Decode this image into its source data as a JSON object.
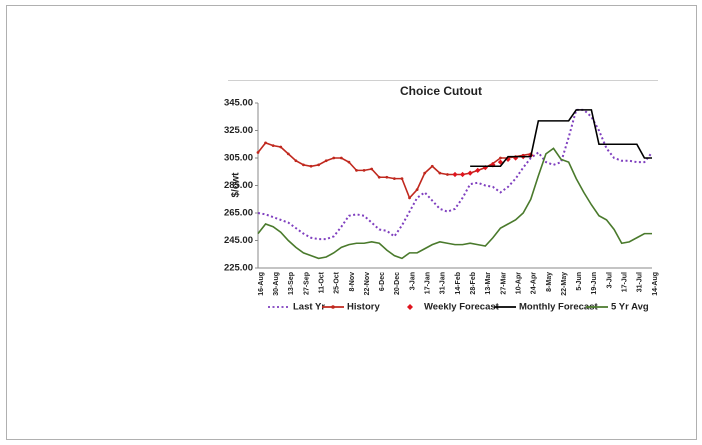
{
  "chart_data": {
    "type": "line",
    "title": "Choice Cutout",
    "y_label": "$/cwt",
    "categories": [
      "16-Aug",
      null,
      "30-Aug",
      null,
      "13-Sep",
      null,
      "27-Sep",
      null,
      "11-Oct",
      null,
      "25-Oct",
      null,
      "8-Nov",
      null,
      "22-Nov",
      null,
      "6-Dec",
      null,
      "20-Dec",
      null,
      "3-Jan",
      null,
      "17-Jan",
      null,
      "31-Jan",
      null,
      "14-Feb",
      null,
      "28-Feb",
      null,
      "13-Mar",
      null,
      "27-Mar",
      null,
      "10-Apr",
      null,
      "24-Apr",
      null,
      "8-May",
      null,
      "22-May",
      null,
      "5-Jun",
      null,
      "19-Jun",
      null,
      "3-Jul",
      null,
      "17-Jul",
      null,
      "31-Jul",
      null,
      "14-Aug"
    ],
    "series": [
      {
        "name": "Last Yr",
        "color": "#7f3fbf",
        "line_style": "dotted",
        "values": [
          265,
          264,
          262,
          260,
          258,
          254,
          250,
          247,
          246,
          246,
          248,
          255,
          263,
          264,
          263,
          258,
          253,
          252,
          248,
          256,
          266,
          276,
          280,
          274,
          268,
          266,
          268,
          276,
          286,
          287,
          285,
          284,
          280,
          284,
          290,
          298,
          305,
          309,
          302,
          300,
          302,
          320,
          340,
          340,
          335,
          325,
          312,
          305,
          303,
          303,
          302,
          302,
          309
        ]
      },
      {
        "name": "History",
        "color": "#c0281e",
        "line_style": "solid",
        "marker": "dot",
        "values": [
          309,
          316,
          314,
          313,
          308,
          303,
          300,
          299,
          300,
          303,
          305,
          305,
          302,
          296,
          296,
          297,
          291,
          291,
          290,
          290,
          276,
          282,
          294,
          299,
          294,
          293,
          293,
          293,
          294,
          296,
          298,
          301,
          305,
          305,
          306,
          307,
          308,
          null,
          null,
          null,
          null,
          null,
          null,
          null,
          null,
          null,
          null,
          null,
          null,
          null,
          null,
          null,
          null
        ]
      },
      {
        "name": "Weekly Forecast",
        "color": "#e0141e",
        "line_style": "none",
        "marker": "diamond",
        "values": [
          null,
          null,
          null,
          null,
          null,
          null,
          null,
          null,
          null,
          null,
          null,
          null,
          null,
          null,
          null,
          null,
          null,
          null,
          null,
          null,
          null,
          null,
          null,
          null,
          null,
          null,
          293,
          293,
          294,
          296,
          298,
          300,
          302,
          304,
          305,
          306,
          307,
          null,
          null,
          null,
          null,
          null,
          null,
          null,
          null,
          null,
          null,
          null,
          null,
          null,
          null,
          null,
          null
        ]
      },
      {
        "name": "Monthly Forecast",
        "color": "#000000",
        "line_style": "solid",
        "values": [
          null,
          null,
          null,
          null,
          null,
          null,
          null,
          null,
          null,
          null,
          null,
          null,
          null,
          null,
          null,
          null,
          null,
          null,
          null,
          null,
          null,
          null,
          null,
          null,
          null,
          null,
          null,
          null,
          299,
          299,
          299,
          299,
          299,
          306,
          306,
          306,
          306,
          332,
          332,
          332,
          332,
          332,
          340,
          340,
          340,
          315,
          315,
          315,
          315,
          315,
          315,
          305,
          305
        ]
      },
      {
        "name": "5 Yr Avg",
        "color": "#4a7a2c",
        "line_style": "solid",
        "values": [
          250,
          257,
          255,
          251,
          245,
          240,
          236,
          234,
          232,
          233,
          236,
          240,
          242,
          243,
          243,
          244,
          243,
          238,
          234,
          232,
          236,
          236,
          239,
          242,
          244,
          243,
          242,
          242,
          243,
          242,
          241,
          247,
          254,
          257,
          260,
          265,
          275,
          292,
          308,
          312,
          304,
          302,
          290,
          280,
          271,
          263,
          260,
          253,
          243,
          244,
          247,
          250,
          250
        ]
      }
    ],
    "ylim": [
      225,
      345
    ],
    "yticks": [
      {
        "value": 225,
        "label": "225.00"
      },
      {
        "value": 245,
        "label": "245.00"
      },
      {
        "value": 265,
        "label": "265.00"
      },
      {
        "value": 285,
        "label": "285.00"
      },
      {
        "value": 305,
        "label": "305.00"
      },
      {
        "value": 325,
        "label": "325.00"
      },
      {
        "value": 345,
        "label": "345.00"
      }
    ],
    "grid": false,
    "legend": "bottom"
  }
}
